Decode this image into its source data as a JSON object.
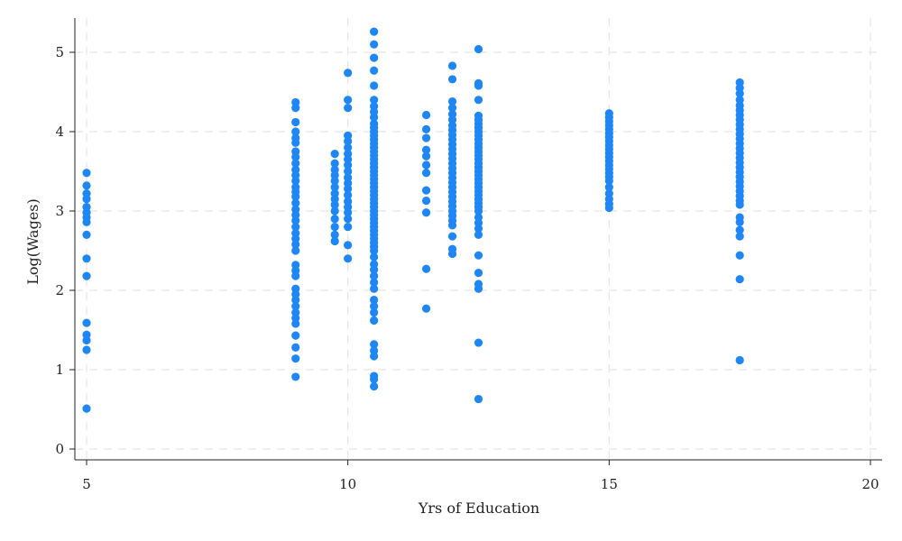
{
  "chart_data": {
    "type": "scatter",
    "title": "",
    "xlabel": "Yrs of Education",
    "ylabel": "Log(Wages)",
    "xlim": [
      5,
      20
    ],
    "ylim": [
      0,
      5.25
    ],
    "x_ticks": [
      5,
      10,
      15,
      20
    ],
    "y_ticks": [
      0,
      1,
      2,
      3,
      4,
      5
    ],
    "grid": true,
    "legend": "none",
    "point_color": "#1e86f5",
    "points_by_x": [
      {
        "x": 5,
        "y": [
          3.48,
          3.32,
          3.22,
          3.15,
          3.05,
          2.98,
          2.92,
          2.86,
          2.7,
          2.4,
          2.18,
          1.59,
          1.44,
          1.37,
          1.25,
          0.51
        ]
      },
      {
        "x": 9,
        "y": [
          4.37,
          4.3,
          4.12,
          4.0,
          3.92,
          3.86,
          3.75,
          3.68,
          3.6,
          3.52,
          3.45,
          3.38,
          3.3,
          3.24,
          3.18,
          3.1,
          3.02,
          2.95,
          2.88,
          2.8,
          2.72,
          2.65,
          2.58,
          2.5,
          2.32,
          2.25,
          2.18,
          2.02,
          1.95,
          1.88,
          1.8,
          1.72,
          1.65,
          1.58,
          1.43,
          1.28,
          1.14,
          0.91
        ]
      },
      {
        "x": 9.75,
        "y": [
          3.72,
          3.6,
          3.52,
          3.45,
          3.38,
          3.3,
          3.22,
          3.15,
          3.08,
          3.0,
          2.9,
          2.8,
          2.7,
          2.62
        ]
      },
      {
        "x": 10,
        "y": [
          4.74,
          4.4,
          4.3,
          3.95,
          3.88,
          3.8,
          3.72,
          3.65,
          3.58,
          3.5,
          3.42,
          3.35,
          3.28,
          3.2,
          3.12,
          3.05,
          2.98,
          2.9,
          2.8,
          2.57,
          2.4
        ]
      },
      {
        "x": 10.5,
        "y": [
          5.26,
          5.1,
          4.93,
          4.77,
          4.58,
          4.4,
          4.32,
          4.25,
          4.18,
          4.1,
          4.05,
          4.0,
          3.95,
          3.9,
          3.85,
          3.8,
          3.75,
          3.7,
          3.65,
          3.6,
          3.55,
          3.5,
          3.45,
          3.4,
          3.35,
          3.3,
          3.25,
          3.2,
          3.15,
          3.1,
          3.05,
          3.0,
          2.95,
          2.9,
          2.85,
          2.8,
          2.75,
          2.7,
          2.65,
          2.6,
          2.55,
          2.5,
          2.42,
          2.33,
          2.26,
          2.18,
          2.1,
          2.02,
          1.88,
          1.8,
          1.72,
          1.62,
          1.32,
          1.24,
          1.17,
          0.92,
          0.88,
          0.79
        ]
      },
      {
        "x": 11.5,
        "y": [
          4.21,
          4.03,
          3.92,
          3.77,
          3.69,
          3.58,
          3.48,
          3.26,
          3.13,
          2.98,
          2.27,
          1.77
        ]
      },
      {
        "x": 12,
        "y": [
          4.83,
          4.66,
          4.38,
          4.3,
          4.22,
          4.15,
          4.08,
          4.02,
          3.96,
          3.9,
          3.84,
          3.78,
          3.72,
          3.66,
          3.6,
          3.54,
          3.48,
          3.42,
          3.36,
          3.3,
          3.24,
          3.18,
          3.12,
          3.06,
          3.0,
          2.94,
          2.88,
          2.82,
          2.68,
          2.52,
          2.46
        ]
      },
      {
        "x": 12.5,
        "y": [
          5.04,
          4.61,
          4.58,
          4.4,
          4.2,
          4.15,
          4.1,
          4.05,
          4.0,
          3.95,
          3.9,
          3.85,
          3.8,
          3.75,
          3.7,
          3.65,
          3.6,
          3.55,
          3.5,
          3.45,
          3.4,
          3.35,
          3.3,
          3.25,
          3.2,
          3.15,
          3.1,
          3.05,
          3.0,
          2.92,
          2.85,
          2.78,
          2.7,
          2.44,
          2.22,
          2.08,
          2.02,
          1.34,
          0.63
        ]
      },
      {
        "x": 15,
        "y": [
          4.23,
          4.18,
          4.13,
          4.08,
          4.03,
          3.98,
          3.93,
          3.88,
          3.83,
          3.78,
          3.73,
          3.68,
          3.63,
          3.58,
          3.53,
          3.48,
          3.43,
          3.38,
          3.3,
          3.22,
          3.15,
          3.09,
          3.04
        ]
      },
      {
        "x": 17.5,
        "y": [
          4.62,
          4.55,
          4.48,
          4.4,
          4.33,
          4.27,
          4.21,
          4.15,
          4.09,
          4.03,
          3.97,
          3.91,
          3.85,
          3.79,
          3.73,
          3.67,
          3.61,
          3.55,
          3.49,
          3.43,
          3.37,
          3.31,
          3.25,
          3.19,
          3.13,
          3.08,
          2.92,
          2.86,
          2.76,
          2.68,
          2.44,
          2.14,
          1.12
        ]
      }
    ]
  }
}
